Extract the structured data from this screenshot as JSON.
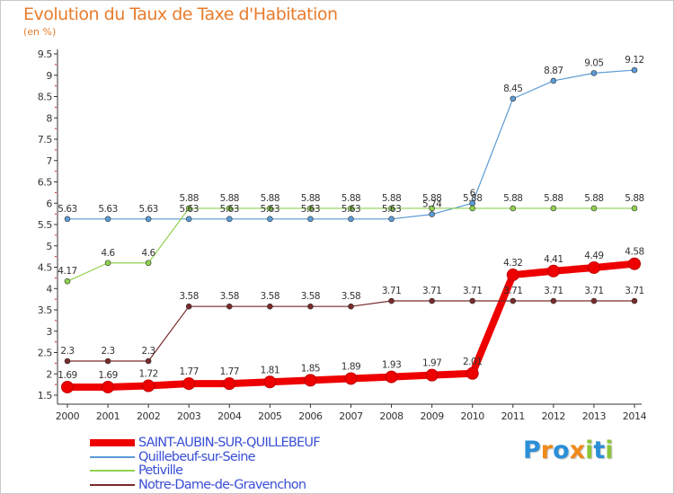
{
  "chart_data": {
    "type": "line",
    "title": "Evolution du Taux de Taxe d'Habitation",
    "subtitle": "(en %)",
    "xlabel": "",
    "ylabel": "(en %)",
    "ylim": [
      1.5,
      9.5
    ],
    "yticks": [
      1.5,
      2,
      2.5,
      3,
      3.5,
      4,
      4.5,
      5,
      5.5,
      6,
      6.5,
      7,
      7.5,
      8,
      8.5,
      9,
      9.5
    ],
    "ytick_labels": [
      "1.5",
      "2",
      "2.5",
      "3",
      "3.5",
      "4",
      "4.5",
      "5",
      "5.5",
      "6",
      "6.5",
      "7",
      "7.5",
      "8",
      "8.5",
      "9",
      "9.5"
    ],
    "categories": [
      "2000",
      "2001",
      "2002",
      "2003",
      "2004",
      "2005",
      "2006",
      "2007",
      "2008",
      "2009",
      "2010",
      "2011",
      "2012",
      "2013",
      "2014"
    ],
    "series": [
      {
        "name": "SAINT-AUBIN-SUR-QUILLEBEUF",
        "color": "#ee0000",
        "values": [
          1.69,
          1.69,
          1.72,
          1.77,
          1.77,
          1.81,
          1.85,
          1.89,
          1.93,
          1.97,
          2.01,
          4.32,
          4.41,
          4.49,
          4.58
        ],
        "labels": [
          "1.69",
          "1.69",
          "1.72",
          "1.77",
          "1.77",
          "1.81",
          "1.85",
          "1.89",
          "1.93",
          "1.97",
          "2.01",
          "4.32",
          "4.41",
          "4.49",
          "4.58"
        ]
      },
      {
        "name": "Quillebeuf-sur-Seine",
        "color": "#5b9bd5",
        "values": [
          5.63,
          5.63,
          5.63,
          5.63,
          5.63,
          5.63,
          5.63,
          5.63,
          5.63,
          5.74,
          6.0,
          8.45,
          8.87,
          9.05,
          9.12
        ],
        "labels": [
          "5.63",
          "5.63",
          "5.63",
          "5.63",
          "5.63",
          "5.63",
          "5.63",
          "5.63",
          "5.63",
          "5.74",
          "6",
          "8.45",
          "8.87",
          "9.05",
          "9.12"
        ]
      },
      {
        "name": "Petiville",
        "color": "#8fd14f",
        "values": [
          4.17,
          4.6,
          4.6,
          5.88,
          5.88,
          5.88,
          5.88,
          5.88,
          5.88,
          5.88,
          5.88,
          5.88,
          5.88,
          5.88,
          5.88
        ],
        "labels": [
          "4.17",
          "4.6",
          "4.6",
          "5.88",
          "5.88",
          "5.88",
          "5.88",
          "5.88",
          "5.88",
          "5.88",
          "5.88",
          "5.88",
          "5.88",
          "5.88",
          "5.88"
        ]
      },
      {
        "name": "Notre-Dame-de-Gravenchon",
        "color": "#7a2a2a",
        "values": [
          2.3,
          2.3,
          2.3,
          3.58,
          3.58,
          3.58,
          3.58,
          3.58,
          3.71,
          3.71,
          3.71,
          3.71,
          3.71,
          3.71,
          3.71
        ],
        "labels": [
          "2.3",
          "2.3",
          "2.3",
          "3.58",
          "3.58",
          "3.58",
          "3.58",
          "3.58",
          "3.71",
          "3.71",
          "3.71",
          "3.71",
          "3.71",
          "3.71",
          "3.71"
        ]
      }
    ],
    "legend": "bottom-left",
    "grid": false
  },
  "legend": {
    "items": [
      {
        "label": "SAINT-AUBIN-SUR-QUILLEBEUF",
        "color": "#ee0000"
      },
      {
        "label": "Quillebeuf-sur-Seine",
        "color": "#5b9bd5"
      },
      {
        "label": "Petiville",
        "color": "#8fd14f"
      },
      {
        "label": "Notre-Dame-de-Gravenchon",
        "color": "#7a2a2a"
      }
    ],
    "text_color": "#3a4fd6"
  },
  "logo": {
    "text": "Proxiti",
    "letters": [
      {
        "ch": "P",
        "color": "#2a8fd8"
      },
      {
        "ch": "r",
        "color": "#f08a1c"
      },
      {
        "ch": "o",
        "color": "#2a8fd8"
      },
      {
        "ch": "x",
        "color": "#f08a1c"
      },
      {
        "ch": "i",
        "color": "#8cc43c"
      },
      {
        "ch": "t",
        "color": "#2a8fd8"
      },
      {
        "ch": "i",
        "color": "#8cc43c"
      }
    ]
  }
}
